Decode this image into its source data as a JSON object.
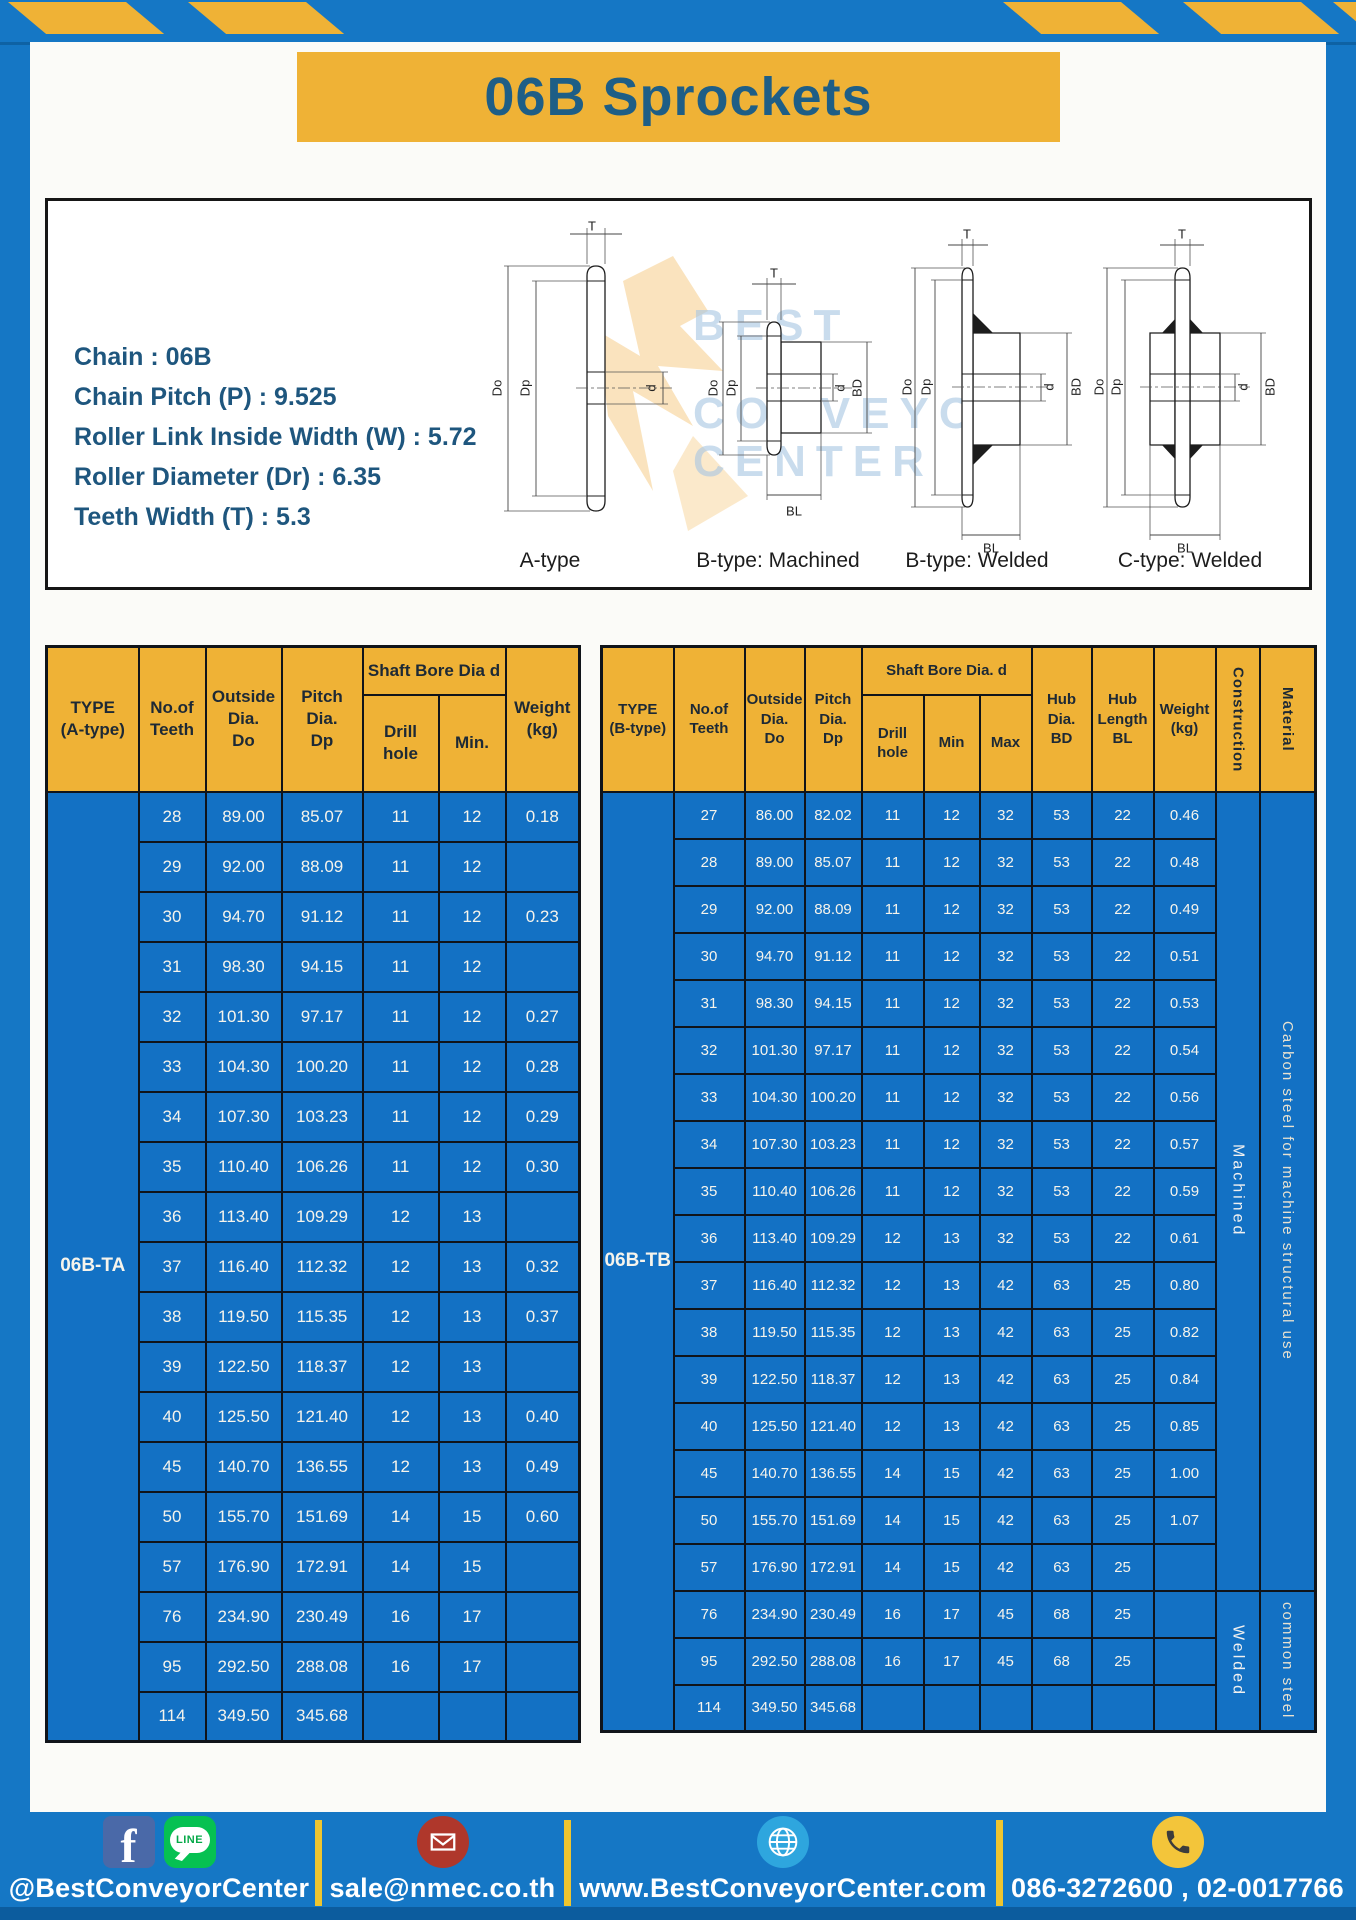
{
  "header": {
    "title": "06B Sprockets"
  },
  "specs": [
    "Chain : 06B",
    "Chain Pitch (P) : 9.525",
    "Roller Link Inside Width (W) : 5.72",
    "Roller Diameter (Dr) : 6.35",
    "Teeth Width (T) : 5.3"
  ],
  "diagram": {
    "watermark": {
      "line1": "BEST",
      "line2": "CONVEYOR",
      "line3": "CENTER"
    },
    "dims": {
      "teeth_width": "T",
      "outside": "Do",
      "pitch": "Dp",
      "bore": "d",
      "hub_dia": "BD",
      "hub_length": "BL"
    },
    "captions": {
      "a_type": "A-type",
      "b_machined": "B-type: Machined",
      "b_welded": "B-type: Welded",
      "c_welded": "C-type: Welded"
    }
  },
  "table_a": {
    "type_label": "06B-TA",
    "headers": {
      "type": "TYPE\n(A-type)",
      "teeth": "No.of\nTeeth",
      "outside_dia": "Outside\nDia.\nDo",
      "pitch_dia": "Pitch Dia.\nDp",
      "shaft_bore": "Shaft Bore Dia d",
      "drill_hole": "Drill hole",
      "min": "Min.",
      "weight": "Weight\n(kg)"
    },
    "rows": [
      [
        "28",
        "89.00",
        "85.07",
        "11",
        "12",
        "0.18"
      ],
      [
        "29",
        "92.00",
        "88.09",
        "11",
        "12",
        ""
      ],
      [
        "30",
        "94.70",
        "91.12",
        "11",
        "12",
        "0.23"
      ],
      [
        "31",
        "98.30",
        "94.15",
        "11",
        "12",
        ""
      ],
      [
        "32",
        "101.30",
        "97.17",
        "11",
        "12",
        "0.27"
      ],
      [
        "33",
        "104.30",
        "100.20",
        "11",
        "12",
        "0.28"
      ],
      [
        "34",
        "107.30",
        "103.23",
        "11",
        "12",
        "0.29"
      ],
      [
        "35",
        "110.40",
        "106.26",
        "11",
        "12",
        "0.30"
      ],
      [
        "36",
        "113.40",
        "109.29",
        "12",
        "13",
        ""
      ],
      [
        "37",
        "116.40",
        "112.32",
        "12",
        "13",
        "0.32"
      ],
      [
        "38",
        "119.50",
        "115.35",
        "12",
        "13",
        "0.37"
      ],
      [
        "39",
        "122.50",
        "118.37",
        "12",
        "13",
        ""
      ],
      [
        "40",
        "125.50",
        "121.40",
        "12",
        "13",
        "0.40"
      ],
      [
        "45",
        "140.70",
        "136.55",
        "12",
        "13",
        "0.49"
      ],
      [
        "50",
        "155.70",
        "151.69",
        "14",
        "15",
        "0.60"
      ],
      [
        "57",
        "176.90",
        "172.91",
        "14",
        "15",
        ""
      ],
      [
        "76",
        "234.90",
        "230.49",
        "16",
        "17",
        ""
      ],
      [
        "95",
        "292.50",
        "288.08",
        "16",
        "17",
        ""
      ],
      [
        "114",
        "349.50",
        "345.68",
        "",
        "",
        ""
      ]
    ]
  },
  "table_b": {
    "type_label": "06B-TB",
    "headers": {
      "type": "TYPE\n(B-type)",
      "teeth": "No.of\nTeeth",
      "outside_dia": "Outside\nDia.\nDo",
      "pitch_dia": "Pitch\nDia.\nDp",
      "shaft_bore": "Shaft Bore Dia. d",
      "drill_hole": "Drill hole",
      "min": "Min",
      "max": "Max",
      "hub_dia": "Hub\nDia.\nBD",
      "hub_length": "Hub\nLength\nBL",
      "weight": "Weight\n(kg)",
      "construction": "Construction",
      "material": "Material"
    },
    "construction": {
      "machined": {
        "label": "Machined",
        "row_span": 17
      },
      "welded": {
        "label": "Welded",
        "row_span": 3
      }
    },
    "material": {
      "machined_rows": {
        "label": "Carbon steel for machine structural use",
        "row_span": 17
      },
      "welded_rows": {
        "label": "common steel",
        "row_span": 3
      }
    },
    "rows": [
      [
        "27",
        "86.00",
        "82.02",
        "11",
        "12",
        "32",
        "53",
        "22",
        "0.46"
      ],
      [
        "28",
        "89.00",
        "85.07",
        "11",
        "12",
        "32",
        "53",
        "22",
        "0.48"
      ],
      [
        "29",
        "92.00",
        "88.09",
        "11",
        "12",
        "32",
        "53",
        "22",
        "0.49"
      ],
      [
        "30",
        "94.70",
        "91.12",
        "11",
        "12",
        "32",
        "53",
        "22",
        "0.51"
      ],
      [
        "31",
        "98.30",
        "94.15",
        "11",
        "12",
        "32",
        "53",
        "22",
        "0.53"
      ],
      [
        "32",
        "101.30",
        "97.17",
        "11",
        "12",
        "32",
        "53",
        "22",
        "0.54"
      ],
      [
        "33",
        "104.30",
        "100.20",
        "11",
        "12",
        "32",
        "53",
        "22",
        "0.56"
      ],
      [
        "34",
        "107.30",
        "103.23",
        "11",
        "12",
        "32",
        "53",
        "22",
        "0.57"
      ],
      [
        "35",
        "110.40",
        "106.26",
        "11",
        "12",
        "32",
        "53",
        "22",
        "0.59"
      ],
      [
        "36",
        "113.40",
        "109.29",
        "12",
        "13",
        "32",
        "53",
        "22",
        "0.61"
      ],
      [
        "37",
        "116.40",
        "112.32",
        "12",
        "13",
        "42",
        "63",
        "25",
        "0.80"
      ],
      [
        "38",
        "119.50",
        "115.35",
        "12",
        "13",
        "42",
        "63",
        "25",
        "0.82"
      ],
      [
        "39",
        "122.50",
        "118.37",
        "12",
        "13",
        "42",
        "63",
        "25",
        "0.84"
      ],
      [
        "40",
        "125.50",
        "121.40",
        "12",
        "13",
        "42",
        "63",
        "25",
        "0.85"
      ],
      [
        "45",
        "140.70",
        "136.55",
        "14",
        "15",
        "42",
        "63",
        "25",
        "1.00"
      ],
      [
        "50",
        "155.70",
        "151.69",
        "14",
        "15",
        "42",
        "63",
        "25",
        "1.07"
      ],
      [
        "57",
        "176.90",
        "172.91",
        "14",
        "15",
        "42",
        "63",
        "25",
        ""
      ],
      [
        "76",
        "234.90",
        "230.49",
        "16",
        "17",
        "45",
        "68",
        "25",
        ""
      ],
      [
        "95",
        "292.50",
        "288.08",
        "16",
        "17",
        "45",
        "68",
        "25",
        ""
      ],
      [
        "114",
        "349.50",
        "345.68",
        "",
        "",
        "",
        "",
        "",
        ""
      ]
    ]
  },
  "footer": {
    "fb_label": "f",
    "line_label": "LINE",
    "social_handle": "@BestConveyorCenter",
    "email": "sale@nmec.co.th",
    "website": "www.BestConveyorCenter.com",
    "phone": "086-3272600 , 02-0017766"
  },
  "colors": {
    "frame_blue": "#1577C5",
    "cell_blue": "#1371C4",
    "accent_yellow": "#EFB236",
    "title_text": "#1E5E86",
    "table_border": "#10141A",
    "footer_dark_strip": "#0C5C9E"
  }
}
